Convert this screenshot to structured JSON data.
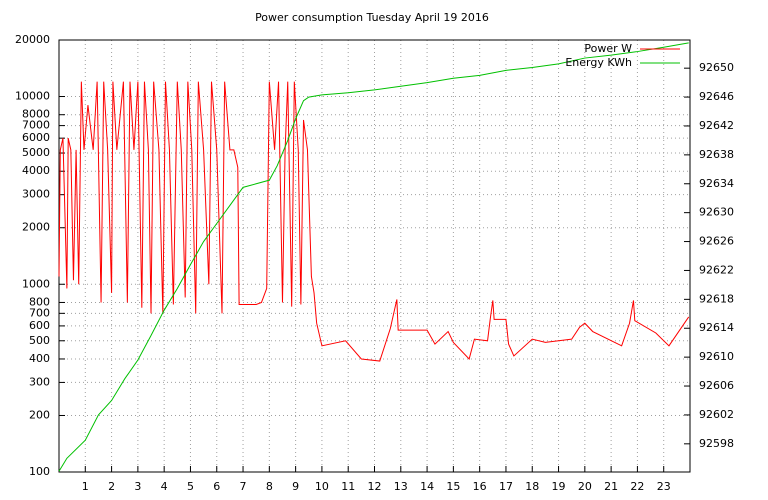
{
  "chart_data": {
    "type": "line",
    "title": "Power consumption Tuesday April 19 2016",
    "xlim": [
      0,
      24
    ],
    "xticks": [
      1,
      2,
      3,
      4,
      5,
      6,
      7,
      8,
      9,
      10,
      11,
      12,
      13,
      14,
      15,
      16,
      17,
      18,
      19,
      20,
      21,
      22,
      23
    ],
    "ylim": [
      100,
      20000
    ],
    "yscale": "log",
    "yticks": [
      100,
      200,
      300,
      400,
      500,
      600,
      700,
      800,
      1000,
      2000,
      3000,
      4000,
      5000,
      6000,
      7000,
      8000,
      10000,
      20000
    ],
    "y2lim": [
      92594.1,
      92653.9
    ],
    "y2ticks": [
      92598,
      92602,
      92606,
      92610,
      92614,
      92618,
      92622,
      92626,
      92630,
      92634,
      92638,
      92642,
      92646,
      92650
    ],
    "grid": true,
    "legend": "top right",
    "series": [
      {
        "name": "Power W",
        "color": "#ff0000",
        "axis": "y",
        "x": [
          0,
          0.05,
          0.15,
          0.3,
          0.35,
          0.45,
          0.55,
          0.65,
          0.75,
          0.85,
          0.95,
          1.1,
          1.3,
          1.45,
          1.6,
          1.7,
          1.85,
          2.0,
          2.05,
          2.2,
          2.45,
          2.6,
          2.7,
          2.85,
          3.0,
          3.15,
          3.25,
          3.4,
          3.5,
          3.6,
          3.8,
          3.95,
          4.05,
          4.2,
          4.35,
          4.5,
          4.65,
          4.8,
          4.9,
          5.05,
          5.2,
          5.3,
          5.5,
          5.7,
          5.8,
          6.0,
          6.2,
          6.3,
          6.5,
          6.65,
          6.8,
          6.85,
          7.5,
          7.7,
          7.9,
          8.0,
          8.2,
          8.35,
          8.5,
          8.6,
          8.7,
          8.85,
          8.95,
          9.1,
          9.2,
          9.3,
          9.45,
          9.6,
          9.7,
          9.8,
          10.0,
          10.9,
          11.5,
          12.2,
          12.6,
          12.85,
          12.9,
          14.0,
          14.3,
          14.8,
          15.0,
          15.6,
          15.8,
          16.3,
          16.4,
          16.5,
          16.55,
          17.0,
          17.1,
          17.3,
          18.0,
          18.5,
          19.5,
          19.8,
          20.0,
          20.3,
          21.4,
          21.7,
          21.85,
          21.9,
          22.7,
          23.2,
          23.95
        ],
        "values": [
          1100,
          5200,
          6000,
          950,
          6000,
          5200,
          1050,
          5200,
          1000,
          12000,
          5200,
          9000,
          5200,
          12000,
          800,
          12000,
          5200,
          900,
          12000,
          5200,
          12000,
          800,
          12000,
          5200,
          12000,
          750,
          12000,
          5200,
          700,
          12000,
          5200,
          700,
          12000,
          5200,
          780,
          12000,
          5200,
          850,
          12000,
          5200,
          700,
          12000,
          5200,
          1000,
          12000,
          5200,
          700,
          12000,
          5200,
          5200,
          4200,
          780,
          780,
          800,
          950,
          12000,
          5200,
          12000,
          800,
          5200,
          12000,
          760,
          12000,
          5200,
          780,
          7500,
          5200,
          1100,
          900,
          620,
          470,
          500,
          400,
          390,
          580,
          830,
          570,
          570,
          480,
          560,
          490,
          400,
          510,
          500,
          650,
          820,
          650,
          650,
          480,
          415,
          510,
          490,
          510,
          590,
          620,
          560,
          470,
          620,
          820,
          640,
          550,
          470,
          670
        ]
      },
      {
        "name": "Energy KWh",
        "color": "#00c000",
        "axis": "y2",
        "x": [
          0,
          0.3,
          1.0,
          1.5,
          2.0,
          2.5,
          3.0,
          3.5,
          4.0,
          4.5,
          5.0,
          5.5,
          6.0,
          6.5,
          7.0,
          7.5,
          8.0,
          8.3,
          8.7,
          9.0,
          9.3,
          9.5,
          10,
          11,
          12,
          13,
          14,
          15,
          16,
          17,
          18,
          19,
          20,
          21,
          22,
          23,
          23.95
        ],
        "values": [
          92594.2,
          92596,
          92598.5,
          92602,
          92604,
          92607,
          92609.6,
          92613,
          92616.5,
          92619.5,
          92622.8,
          92626,
          92628.5,
          92631,
          92633.5,
          92634,
          92634.5,
          92636.5,
          92640,
          92643,
          92645.5,
          92646,
          92646.3,
          92646.6,
          92647,
          92647.5,
          92648,
          92648.6,
          92649,
          92649.7,
          92650.1,
          92650.6,
          92651.4,
          92651.8,
          92652.3,
          92652.9,
          92653.5
        ]
      }
    ]
  }
}
